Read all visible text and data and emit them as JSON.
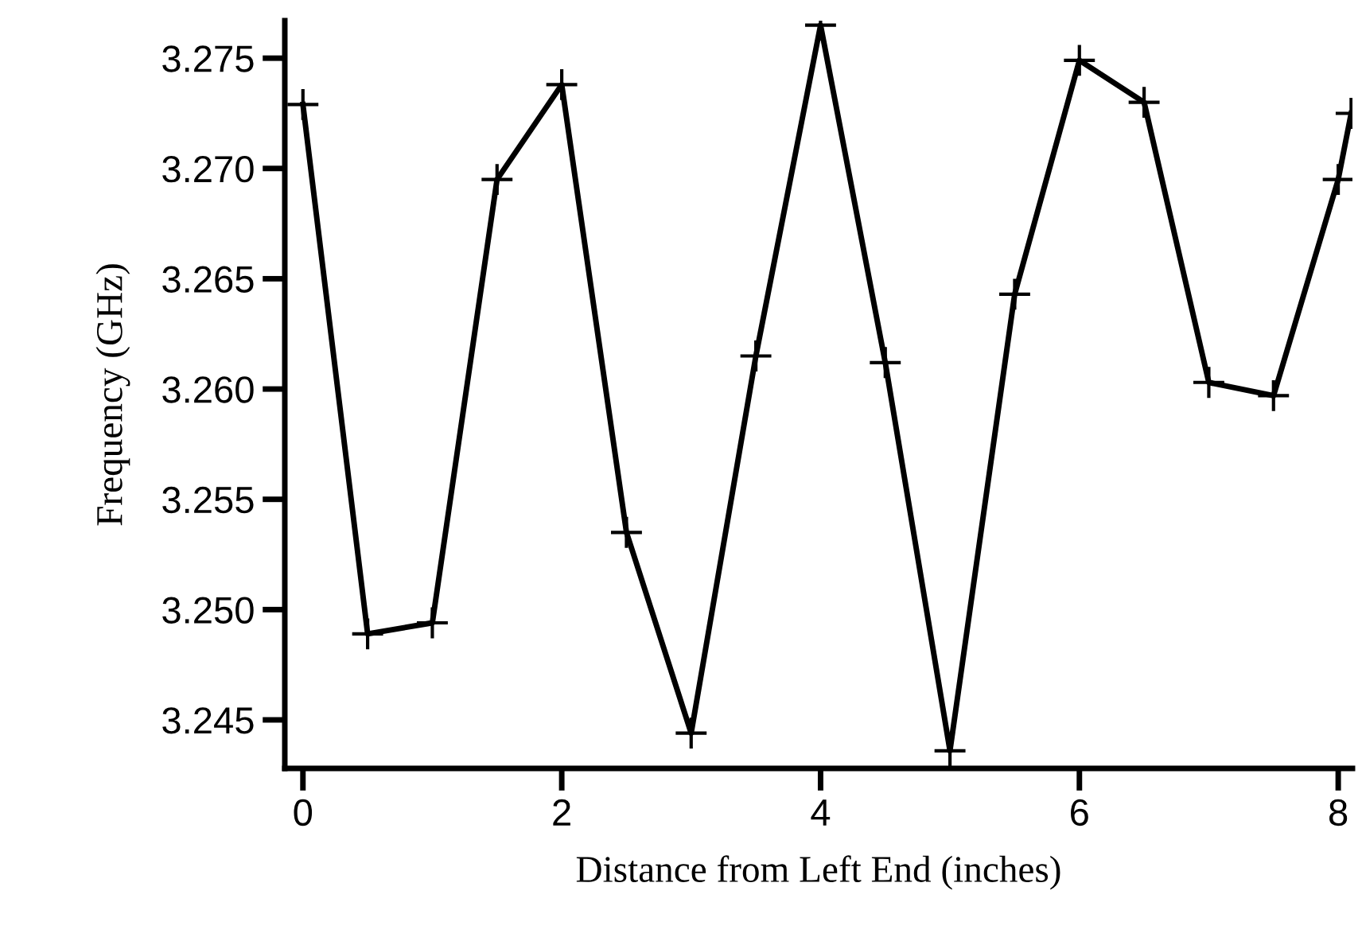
{
  "chart_data": {
    "type": "line",
    "xlabel": "Distance from Left End (inches)",
    "ylabel": "Frequency (GHz)",
    "x": [
      0,
      0.5,
      1,
      1.5,
      2,
      2.5,
      3,
      3.5,
      4,
      4.5,
      5,
      5.5,
      6,
      6.5,
      7,
      7.5,
      8,
      8.1
    ],
    "series": [
      {
        "color": "#000000",
        "values": [
          3.2729,
          3.2489,
          3.2494,
          3.2695,
          3.2738,
          3.2535,
          3.2444,
          3.2615,
          3.2765,
          3.2612,
          3.2436,
          3.2643,
          3.2749,
          3.273,
          3.2603,
          3.2597,
          3.2695,
          3.2725
        ]
      }
    ],
    "xlim": [
      -0.14,
      8.11
    ],
    "ylim": [
      3.2428,
      3.2767
    ],
    "xticks": [
      0,
      2,
      4,
      6,
      8
    ],
    "yticks": [
      {
        "value": 3.245,
        "label": "3.245"
      },
      {
        "value": 3.25,
        "label": "3.250"
      },
      {
        "value": 3.255,
        "label": "3.255"
      },
      {
        "value": 3.26,
        "label": "3.260"
      },
      {
        "value": 3.265,
        "label": "3.265"
      },
      {
        "value": 3.27,
        "label": "3.270"
      },
      {
        "value": 3.275,
        "label": "3.275"
      }
    ],
    "marker": "cross",
    "line_style": "solid",
    "grid": false,
    "legend": false
  }
}
